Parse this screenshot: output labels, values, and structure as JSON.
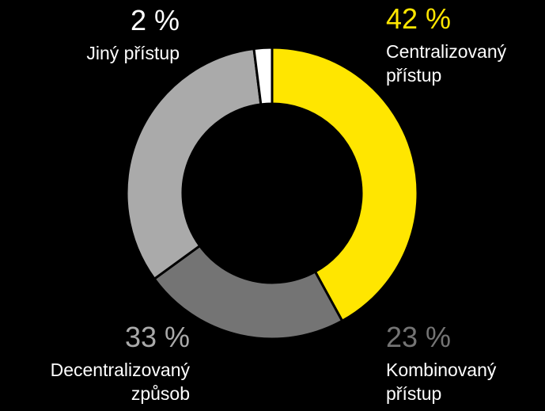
{
  "chart_data": {
    "type": "donut",
    "categories": [
      "Centralizovaný přístup",
      "Kombinovaný přístup",
      "Decentralizovaný způsob",
      "Jiný přístup"
    ],
    "values": [
      42,
      23,
      33,
      2
    ],
    "value_labels": [
      "42 %",
      "23 %",
      "33 %",
      "2 %"
    ],
    "colors": [
      "#ffe600",
      "#747474",
      "#aaaaaa",
      "#ffffff"
    ]
  }
}
